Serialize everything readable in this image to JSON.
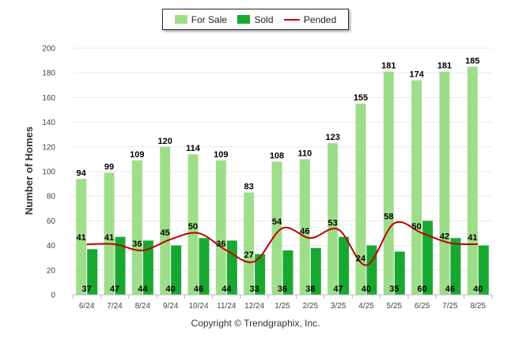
{
  "colors": {
    "for_sale": "#9ede8a",
    "sold": "#18a832",
    "pended": "#c00000"
  },
  "legend": {
    "for_sale": "For Sale",
    "sold": "Sold",
    "pended": "Pended"
  },
  "copyright": "Copyright © Trendgraphix, Inc.",
  "chart_data": {
    "type": "bar",
    "title": "",
    "xlabel": "",
    "ylabel": "Number of Homes",
    "ylim": [
      0,
      200
    ],
    "yticks": [
      0,
      20,
      40,
      60,
      80,
      100,
      120,
      140,
      160,
      180,
      200
    ],
    "grid": true,
    "legend_position": "top-center",
    "categories": [
      "6/24",
      "7/24",
      "8/24",
      "9/24",
      "10/24",
      "11/24",
      "12/24",
      "1/25",
      "2/25",
      "3/25",
      "4/25",
      "5/25",
      "6/25",
      "7/25",
      "8/25"
    ],
    "series": [
      {
        "name": "For Sale",
        "type": "bar",
        "values": [
          94,
          99,
          109,
          120,
          114,
          109,
          83,
          108,
          110,
          123,
          155,
          181,
          174,
          181,
          185
        ]
      },
      {
        "name": "Sold",
        "type": "bar",
        "values": [
          37,
          47,
          44,
          40,
          46,
          44,
          33,
          36,
          38,
          47,
          40,
          35,
          60,
          46,
          40
        ]
      },
      {
        "name": "Pended",
        "type": "line",
        "values": [
          41,
          41,
          36,
          45,
          50,
          36,
          27,
          54,
          46,
          53,
          24,
          58,
          50,
          42,
          41
        ]
      }
    ]
  }
}
